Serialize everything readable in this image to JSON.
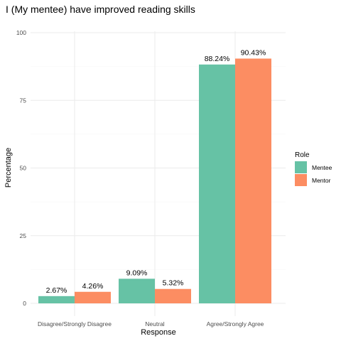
{
  "chart_data": {
    "type": "bar",
    "title": "I (My mentee) have improved reading skills",
    "xlabel": "Response",
    "ylabel": "Percentage",
    "ylim": [
      0,
      100
    ],
    "yticks": [
      0,
      25,
      50,
      75,
      100
    ],
    "grid": true,
    "legend_position": "right",
    "legend_title": "Role",
    "categories": [
      "Disagree/Strongly Disagree",
      "Neutral",
      "Agree/Strongly Agree"
    ],
    "series": [
      {
        "name": "Mentee",
        "color": "#66c2a5",
        "values": [
          2.67,
          9.09,
          88.24
        ],
        "labels": [
          "2.67%",
          "9.09%",
          "88.24%"
        ]
      },
      {
        "name": "Mentor",
        "color": "#fc8d62",
        "values": [
          4.26,
          5.32,
          90.43
        ],
        "labels": [
          "4.26%",
          "5.32%",
          "90.43%"
        ]
      }
    ]
  }
}
